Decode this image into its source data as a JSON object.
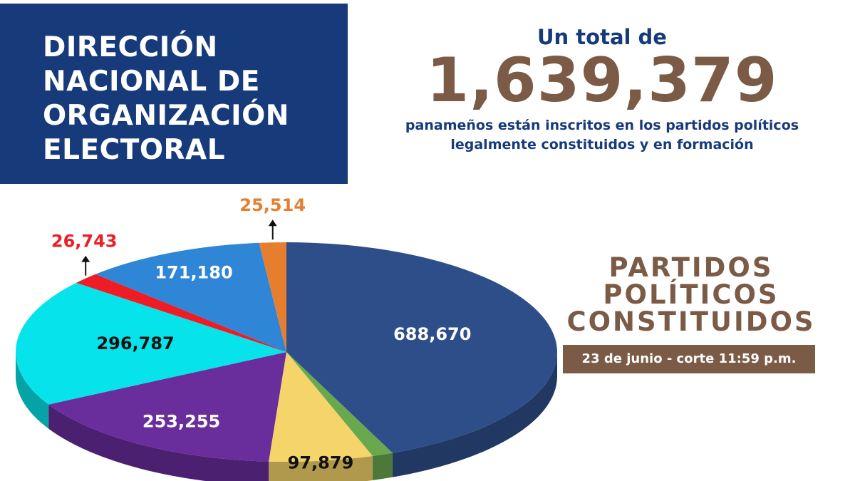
{
  "header": {
    "title_lines": [
      "DIRECCIÓN",
      "NACIONAL DE",
      "ORGANIZACIÓN",
      "ELECTORAL"
    ]
  },
  "summary": {
    "intro": "Un total de",
    "total": "1,639,379",
    "description_line1": "panameños están inscritos en los partidos políticos",
    "description_line2": "legalmente constituidos y en formación"
  },
  "panel": {
    "heading_lines": [
      "PARTIDOS",
      "POLÍTICOS",
      "CONSTITUIDOS"
    ],
    "date": "23 de junio - corte 11:59 p.m."
  },
  "colors": {
    "navy": "#163a7a",
    "brown": "#7b5a46"
  },
  "chart_data": {
    "type": "pie",
    "slices": [
      {
        "value": 688670,
        "label": "688,670",
        "color": "#2e4e8a"
      },
      {
        "value": 19851,
        "label": "",
        "color": "#6aa84f"
      },
      {
        "value": 97879,
        "label": "97,879",
        "color": "#f5d56a"
      },
      {
        "value": 253255,
        "label": "253,255",
        "color": "#6a2d9c"
      },
      {
        "value": 296787,
        "label": "296,787",
        "color": "#07e3ea"
      },
      {
        "value": 26743,
        "label": "26,743",
        "color": "#ee1c25"
      },
      {
        "value": 171180,
        "label": "171,180",
        "color": "#2f86d6"
      },
      {
        "value": 25514,
        "label": "25,514",
        "color": "#e57f2f"
      }
    ]
  }
}
